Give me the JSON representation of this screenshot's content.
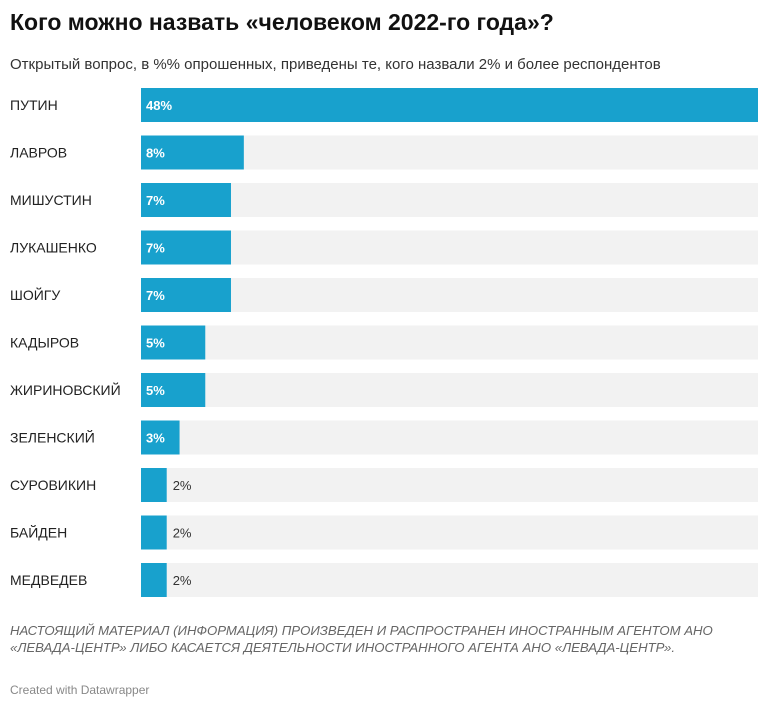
{
  "header": {
    "title": "Кого можно назвать «человеком 2022-го года»?",
    "subtitle": "Открытый вопрос, в %% опрошенных, приведены те, кого назвали 2% и более респондентов"
  },
  "footer": {
    "note": "НАСТОЯЩИЙ МАТЕРИАЛ (ИНФОРМАЦИЯ) ПРОИЗВЕДЕН И РАСПРОСТРАНЕН ИНОСТРАННЫМ АГЕНТОМ АНО «ЛЕВАДА-ЦЕНТР» ЛИБО КАСАЕТСЯ ДЕЯТЕЛЬНОСТИ ИНОСТРАННОГО АГЕНТА АНО «ЛЕВАДА-ЦЕНТР».",
    "credit": "Created with Datawrapper"
  },
  "colors": {
    "bar": "#18a1cd",
    "track": "#f2f2f2",
    "label_inside": "#ffffff",
    "label_outside": "#333333"
  },
  "chart_data": {
    "type": "bar",
    "orientation": "horizontal",
    "categories": [
      "ПУТИН",
      "ЛАВРОВ",
      "МИШУСТИН",
      "ЛУКАШЕНКО",
      "ШОЙГУ",
      "КАДЫРОВ",
      "ЖИРИНОВСКИЙ",
      "ЗЕЛЕНСКИЙ",
      "СУРОВИКИН",
      "БАЙДЕН",
      "МЕДВЕДЕВ"
    ],
    "values": [
      48,
      8,
      7,
      7,
      7,
      5,
      5,
      3,
      2,
      2,
      2
    ],
    "value_labels": [
      "48%",
      "8%",
      "7%",
      "7%",
      "7%",
      "5%",
      "5%",
      "3%",
      "2%",
      "2%",
      "2%"
    ],
    "xlim": [
      0,
      48
    ],
    "grid": false,
    "legend": "none"
  }
}
